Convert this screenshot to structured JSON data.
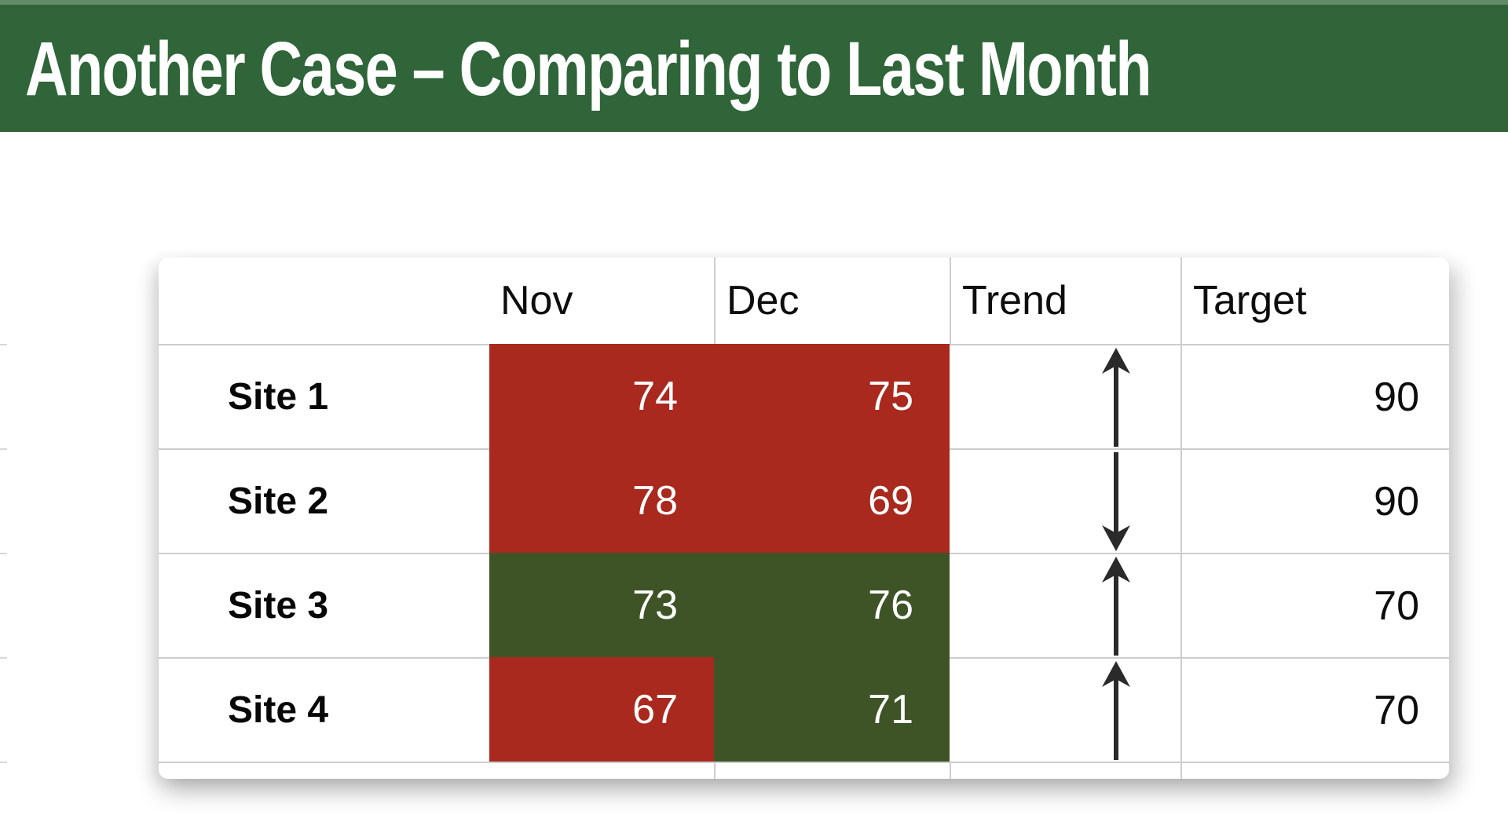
{
  "slide": {
    "title": "Another Case – Comparing to Last Month"
  },
  "colors": {
    "header_bar_green": "#2F6539",
    "cell_red": "#A9291E",
    "cell_green": "#3E5426",
    "gridline": "#CDCDCD",
    "value_text_on_fill": "#FFFFFF",
    "text_black": "#0D0D0D"
  },
  "table": {
    "columns": [
      "",
      "Nov",
      "Dec",
      "Trend",
      "Target"
    ],
    "rows": [
      {
        "label": "Site 1",
        "nov": "74",
        "nov_fill": "red",
        "dec": "75",
        "dec_fill": "red",
        "trend": "up",
        "trend_glyph": "↑",
        "target": "90"
      },
      {
        "label": "Site 2",
        "nov": "78",
        "nov_fill": "red",
        "dec": "69",
        "dec_fill": "red",
        "trend": "down",
        "trend_glyph": "↓",
        "target": "90"
      },
      {
        "label": "Site 3",
        "nov": "73",
        "nov_fill": "green",
        "dec": "76",
        "dec_fill": "green",
        "trend": "up",
        "trend_glyph": "↑",
        "target": "70"
      },
      {
        "label": "Site 4",
        "nov": "67",
        "nov_fill": "red",
        "dec": "71",
        "dec_fill": "green",
        "trend": "up",
        "trend_glyph": "↑",
        "target": "70"
      }
    ]
  },
  "chart_data": {
    "type": "table",
    "title": "Another Case – Comparing to Last Month",
    "categories": [
      "Site 1",
      "Site 2",
      "Site 3",
      "Site 4"
    ],
    "series": [
      {
        "name": "Nov",
        "values": [
          74,
          78,
          73,
          67
        ]
      },
      {
        "name": "Dec",
        "values": [
          75,
          69,
          76,
          71
        ]
      },
      {
        "name": "Trend",
        "values": [
          "up",
          "down",
          "up",
          "up"
        ]
      },
      {
        "name": "Target",
        "values": [
          90,
          90,
          70,
          70
        ]
      }
    ],
    "cell_fills": {
      "Nov": [
        "red",
        "red",
        "green",
        "red"
      ],
      "Dec": [
        "red",
        "red",
        "green",
        "green"
      ]
    },
    "legend_position": "none",
    "grid": true
  }
}
